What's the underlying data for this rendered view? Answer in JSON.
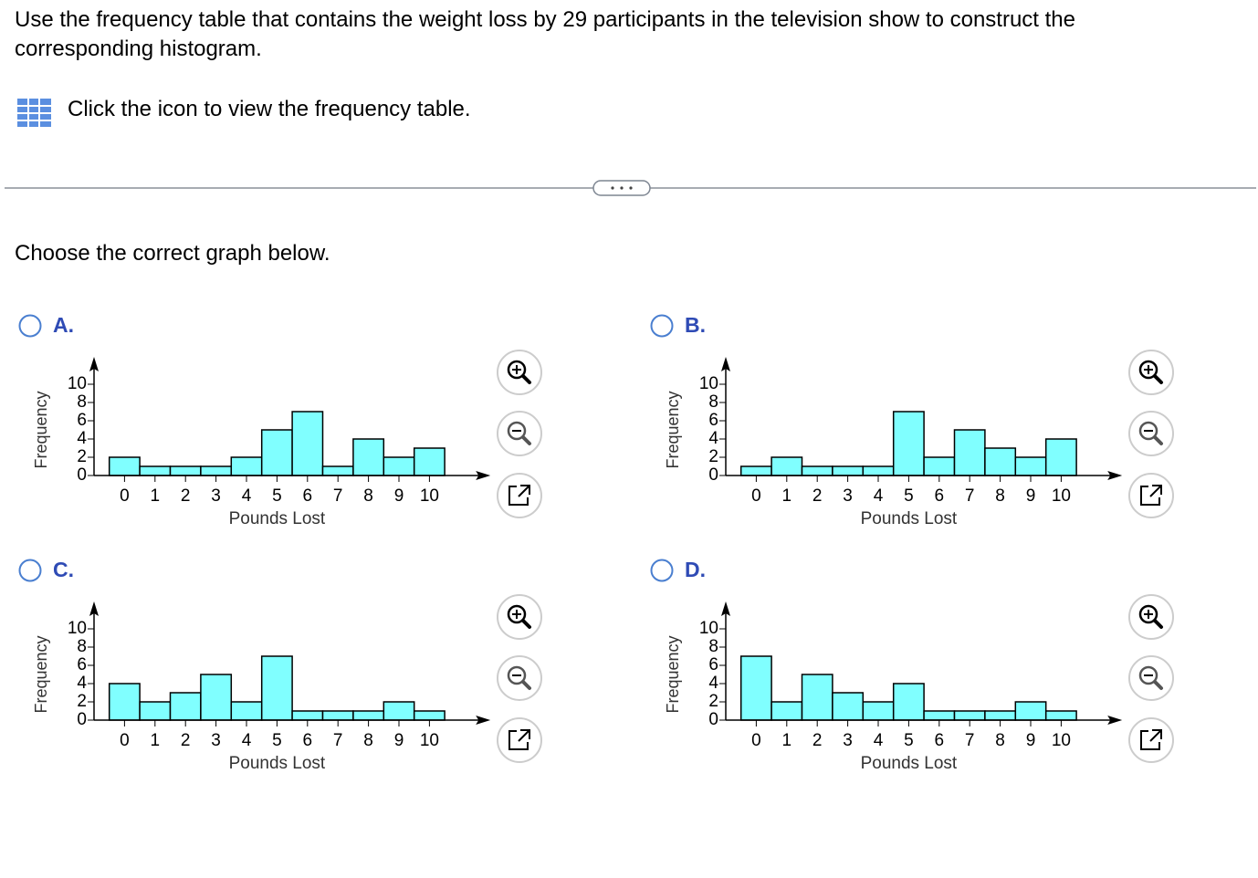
{
  "question": "Use the frequency table that contains the weight loss by 29 participants in the television show to construct the corresponding histogram.",
  "table_link": "Click the icon to view the frequency table.",
  "prompt": "Choose the correct graph below.",
  "options": [
    "A.",
    "B.",
    "C.",
    "D."
  ],
  "chart_data": [
    {
      "type": "histogram",
      "bins": [
        -0.5,
        0.5,
        1.5,
        2.5,
        3.5,
        4.5,
        5.5,
        6.5,
        7.5,
        8.5,
        9.5,
        10.5
      ],
      "values": [
        2,
        1,
        1,
        1,
        2,
        5,
        7,
        1,
        4,
        2,
        3
      ],
      "color": "#80ffff",
      "xlabel": "Pounds Lost",
      "ylabel": "Frequency",
      "xlim": [
        -1,
        12
      ],
      "ylim": [
        0,
        13
      ],
      "xticks": [
        0,
        1,
        2,
        3,
        4,
        5,
        6,
        7,
        8,
        9,
        10
      ],
      "yticks": [
        0,
        2,
        4,
        6,
        8,
        10
      ]
    },
    {
      "type": "histogram",
      "bins": [
        -0.5,
        0.5,
        1.5,
        2.5,
        3.5,
        4.5,
        5.5,
        6.5,
        7.5,
        8.5,
        9.5,
        10.5
      ],
      "values": [
        1,
        2,
        1,
        1,
        1,
        7,
        2,
        5,
        3,
        2,
        4
      ],
      "color": "#80ffff",
      "xlabel": "Pounds Lost",
      "ylabel": "Frequency",
      "xlim": [
        -1,
        12
      ],
      "ylim": [
        0,
        13
      ],
      "xticks": [
        0,
        1,
        2,
        3,
        4,
        5,
        6,
        7,
        8,
        9,
        10
      ],
      "yticks": [
        0,
        2,
        4,
        6,
        8,
        10
      ]
    },
    {
      "type": "histogram",
      "bins": [
        -0.5,
        0.5,
        1.5,
        2.5,
        3.5,
        4.5,
        5.5,
        6.5,
        7.5,
        8.5,
        9.5,
        10.5
      ],
      "values": [
        4,
        2,
        3,
        5,
        2,
        7,
        1,
        1,
        1,
        2,
        1
      ],
      "color": "#80ffff",
      "xlabel": "Pounds Lost",
      "ylabel": "Frequency",
      "xlim": [
        -1,
        12
      ],
      "ylim": [
        0,
        13
      ],
      "xticks": [
        0,
        1,
        2,
        3,
        4,
        5,
        6,
        7,
        8,
        9,
        10
      ],
      "yticks": [
        0,
        2,
        4,
        6,
        8,
        10
      ]
    },
    {
      "type": "histogram",
      "bins": [
        -0.5,
        0.5,
        1.5,
        2.5,
        3.5,
        4.5,
        5.5,
        6.5,
        7.5,
        8.5,
        9.5,
        10.5
      ],
      "values": [
        7,
        2,
        5,
        3,
        2,
        4,
        1,
        1,
        1,
        2,
        1
      ],
      "color": "#80ffff",
      "xlabel": "Pounds Lost",
      "ylabel": "Frequency",
      "xlim": [
        -1,
        12
      ],
      "ylim": [
        0,
        13
      ],
      "xticks": [
        0,
        1,
        2,
        3,
        4,
        5,
        6,
        7,
        8,
        9,
        10
      ],
      "yticks": [
        0,
        2,
        4,
        6,
        8,
        10
      ]
    }
  ]
}
